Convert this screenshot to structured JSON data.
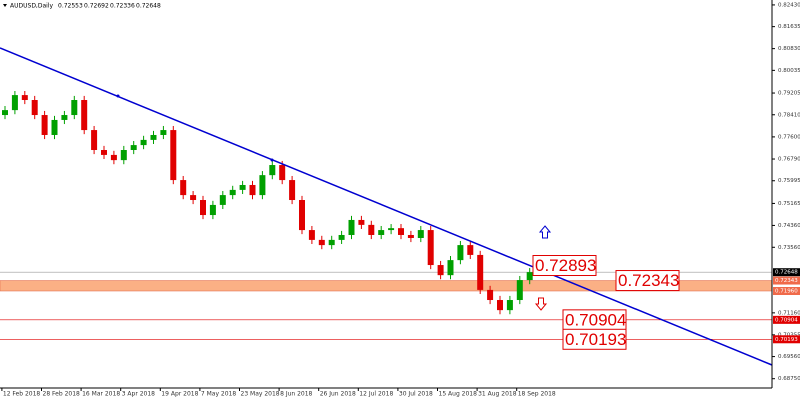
{
  "chart_data": {
    "type": "candlestick",
    "title": "AUDUSD,Daily",
    "header_values": [
      0.72553,
      0.72692,
      0.72336,
      0.72648
    ],
    "categories": [
      null,
      "12 Feb 2018",
      null,
      null,
      null,
      "28 Feb 2018",
      null,
      null,
      null,
      "16 Mar 2018",
      null,
      null,
      null,
      "3 Apr 2018",
      null,
      null,
      null,
      "19 Apr 2018",
      null,
      null,
      null,
      "7 May 2018",
      null,
      null,
      null,
      "23 May 2018",
      null,
      null,
      null,
      "8 Jun 2018",
      null,
      null,
      null,
      "26 Jun 2018",
      null,
      null,
      null,
      "12 Jul 2018",
      null,
      null,
      null,
      "30 Jul 2018",
      null,
      null,
      null,
      "15 Aug 2018",
      null,
      null,
      null,
      "31 Aug 2018",
      null,
      null,
      null,
      "18 Sep 2018"
    ],
    "open": [
      0.784,
      0.7858,
      0.7913,
      0.7895,
      0.784,
      0.7767,
      0.7822,
      0.784,
      0.7895,
      0.7785,
      0.7712,
      0.7694,
      0.7675,
      0.7712,
      0.773,
      0.7749,
      0.7767,
      0.7785,
      0.7602,
      0.7547,
      0.7529,
      0.7474,
      0.7511,
      0.7547,
      0.7566,
      0.7584,
      0.7547,
      0.762,
      0.7657,
      0.7602,
      0.7529,
      0.7419,
      0.7383,
      0.7364,
      0.7383,
      0.7401,
      0.7456,
      0.7438,
      0.7401,
      0.7419,
      0.7426,
      0.7401,
      0.739,
      0.7419,
      0.7291,
      0.7254,
      0.7309,
      0.7364,
      0.7328,
      0.72,
      0.7163,
      0.7126,
      0.7163,
      0.7236
    ],
    "high": [
      0.7873,
      0.7928,
      0.7928,
      0.791,
      0.7855,
      0.7837,
      0.7855,
      0.791,
      0.791,
      0.78,
      0.7727,
      0.7709,
      0.7727,
      0.7745,
      0.7764,
      0.7782,
      0.78,
      0.78,
      0.7617,
      0.7562,
      0.7544,
      0.7526,
      0.7562,
      0.7581,
      0.7599,
      0.7599,
      0.7635,
      0.7672,
      0.7672,
      0.7617,
      0.7544,
      0.7434,
      0.7398,
      0.7398,
      0.7416,
      0.7471,
      0.7471,
      0.7453,
      0.7434,
      0.7441,
      0.7441,
      0.7416,
      0.7434,
      0.7434,
      0.7306,
      0.7324,
      0.7379,
      0.7379,
      0.7343,
      0.7215,
      0.7178,
      0.7178,
      0.7251,
      0.728
    ],
    "low": [
      0.7825,
      0.7843,
      0.788,
      0.7825,
      0.7752,
      0.7752,
      0.7807,
      0.7825,
      0.777,
      0.7697,
      0.7679,
      0.766,
      0.766,
      0.7697,
      0.7715,
      0.7734,
      0.7752,
      0.7587,
      0.7532,
      0.7514,
      0.7459,
      0.7459,
      0.7496,
      0.7532,
      0.7551,
      0.7532,
      0.7532,
      0.7605,
      0.7587,
      0.7514,
      0.7404,
      0.7368,
      0.7349,
      0.7349,
      0.7368,
      0.7386,
      0.7423,
      0.7386,
      0.7386,
      0.7404,
      0.7386,
      0.7375,
      0.7375,
      0.7276,
      0.7239,
      0.7239,
      0.7294,
      0.7313,
      0.7185,
      0.7148,
      0.7111,
      0.7111,
      0.7148,
      0.7221
    ],
    "close": [
      0.7858,
      0.7913,
      0.7895,
      0.784,
      0.7767,
      0.7822,
      0.784,
      0.7895,
      0.7785,
      0.7712,
      0.7694,
      0.7675,
      0.7712,
      0.773,
      0.7749,
      0.7767,
      0.7785,
      0.7602,
      0.7547,
      0.7529,
      0.7474,
      0.7511,
      0.7547,
      0.7566,
      0.7584,
      0.7547,
      0.762,
      0.7657,
      0.7602,
      0.7529,
      0.7419,
      0.7383,
      0.7364,
      0.7383,
      0.7401,
      0.7456,
      0.7438,
      0.7401,
      0.7419,
      0.7426,
      0.7401,
      0.739,
      0.7419,
      0.7291,
      0.7254,
      0.7309,
      0.7364,
      0.7328,
      0.72,
      0.7163,
      0.7126,
      0.7163,
      0.7236,
      0.7265
    ],
    "up_color": "#00a000",
    "down_color": "#e00000",
    "ylim": [
      0.6841,
      0.8261
    ],
    "yticks": [
      {
        "value": 0.8243,
        "label": "0.82430"
      },
      0.81635,
      {
        "value": 0.8083,
        "label": "0.80830"
      },
      0.80035,
      0.79205,
      {
        "value": 0.7841,
        "label": "0.78410"
      },
      {
        "value": 0.776,
        "label": "0.77600"
      },
      {
        "value": 0.7679,
        "label": "0.76790"
      },
      0.75995,
      0.75165,
      {
        "value": 0.7436,
        "label": "0.74360"
      },
      {
        "value": 0.7356,
        "label": "0.73560"
      },
      {
        "value": 0.7116,
        "label": "0.71160"
      },
      0.70355,
      {
        "value": 0.6956,
        "label": "0.69560"
      },
      {
        "value": 0.6875,
        "label": "0.68750"
      }
    ],
    "current_price": 0.72648,
    "zone": {
      "high": 0.72343,
      "low": {
        "value": 0.7196,
        "label": "0.71960"
      },
      "color": "#fbb085"
    },
    "level_lines": [
      0.70904,
      0.70193
    ],
    "annotations": [
      0.72893,
      0.72343,
      0.70904,
      0.70193
    ]
  }
}
